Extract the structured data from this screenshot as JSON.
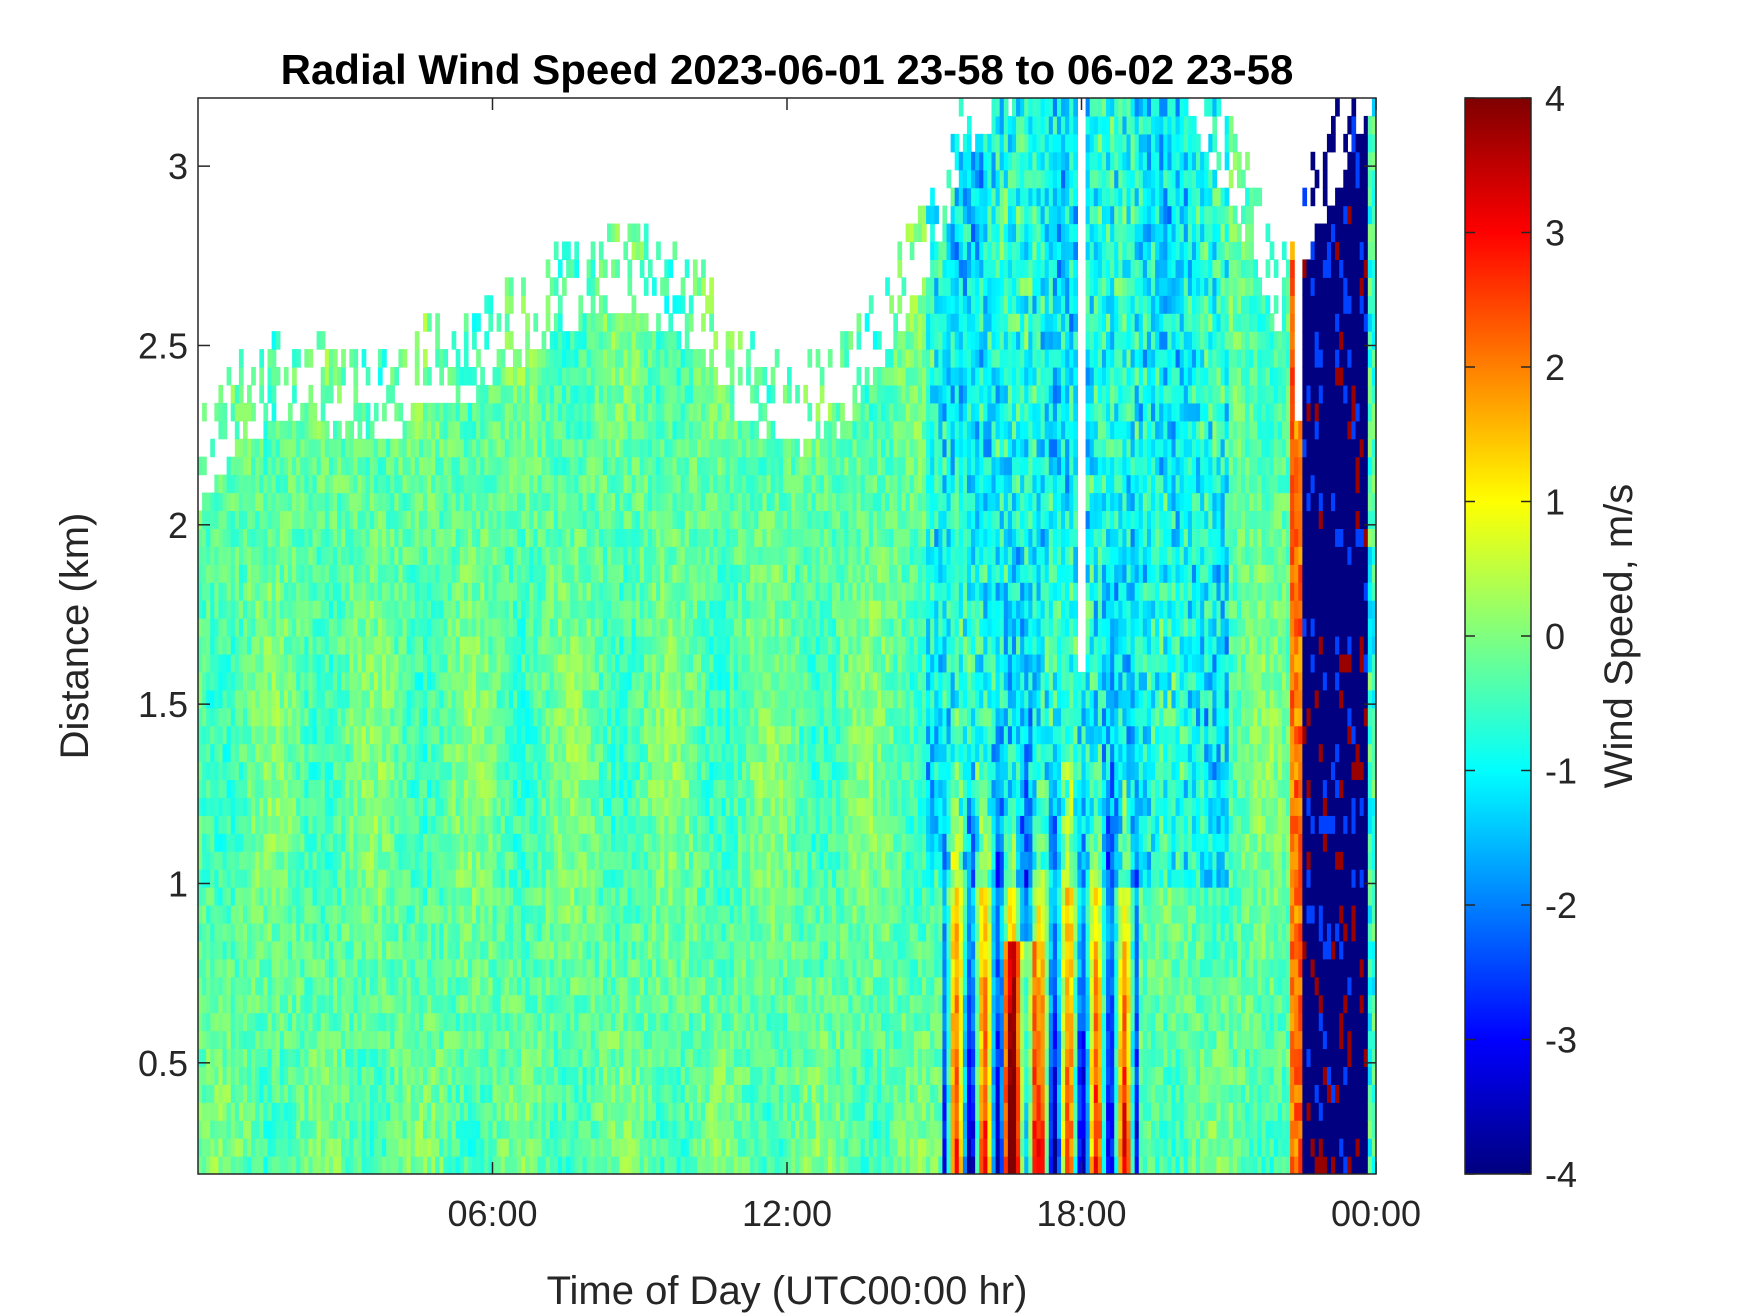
{
  "chart_data": {
    "type": "heatmap",
    "title": "Radial Wind Speed 2023-06-01 23-58 to 06-02 23-58",
    "xlabel": "Time of Day (UTC00:00 hr)",
    "ylabel": "Distance (km)",
    "x_tick_labels": [
      "06:00",
      "12:00",
      "18:00",
      "00:00"
    ],
    "x_tick_values_hours": [
      6,
      12,
      18,
      24
    ],
    "xlim_hours": [
      0,
      24
    ],
    "y_tick_labels": [
      "0.5",
      "1",
      "1.5",
      "2",
      "2.5",
      "3"
    ],
    "y_tick_values": [
      0.5,
      1,
      1.5,
      2,
      2.5,
      3
    ],
    "ylim": [
      0.19,
      3.19
    ],
    "colorbar": {
      "label": "Wind Speed, m/s",
      "range": [
        -4,
        4
      ],
      "tick_labels": [
        "4",
        "3",
        "2",
        "1",
        "0",
        "-1",
        "-2",
        "-3",
        "-4"
      ],
      "colormap": "jet"
    },
    "data_top_boundary_km": [
      [
        0.0,
        2.05
      ],
      [
        0.5,
        2.15
      ],
      [
        1.0,
        2.25
      ],
      [
        2.0,
        2.3
      ],
      [
        3.0,
        2.25
      ],
      [
        4.0,
        2.22
      ],
      [
        4.6,
        2.35
      ],
      [
        5.5,
        2.35
      ],
      [
        6.5,
        2.45
      ],
      [
        7.0,
        2.5
      ],
      [
        7.5,
        2.55
      ],
      [
        8.5,
        2.6
      ],
      [
        9.5,
        2.55
      ],
      [
        10.5,
        2.45
      ],
      [
        11.0,
        2.3
      ],
      [
        12.0,
        2.2
      ],
      [
        13.0,
        2.25
      ],
      [
        14.0,
        2.45
      ],
      [
        15.0,
        2.75
      ],
      [
        16.0,
        3.1
      ],
      [
        17.0,
        3.19
      ],
      [
        20.0,
        3.19
      ],
      [
        21.0,
        2.9
      ],
      [
        22.0,
        2.55
      ],
      [
        24.0,
        3.19
      ]
    ],
    "features": [
      {
        "hours": [
          0,
          15
        ],
        "km": [
          0.19,
          2.6
        ],
        "value_range_ms": [
          -0.5,
          0.5
        ]
      },
      {
        "hours": [
          15.5,
          19
        ],
        "km": [
          0.19,
          1.4
        ],
        "value_range_ms": [
          -2.5,
          3
        ]
      },
      {
        "hours": [
          22.3,
          22.5
        ],
        "km": [
          0.19,
          2.3
        ],
        "value_range_ms": [
          1,
          3
        ]
      },
      {
        "hours": [
          22.5,
          23.8
        ],
        "km": [
          0.19,
          3.19
        ],
        "value_range_ms": [
          -4,
          4
        ]
      }
    ]
  }
}
